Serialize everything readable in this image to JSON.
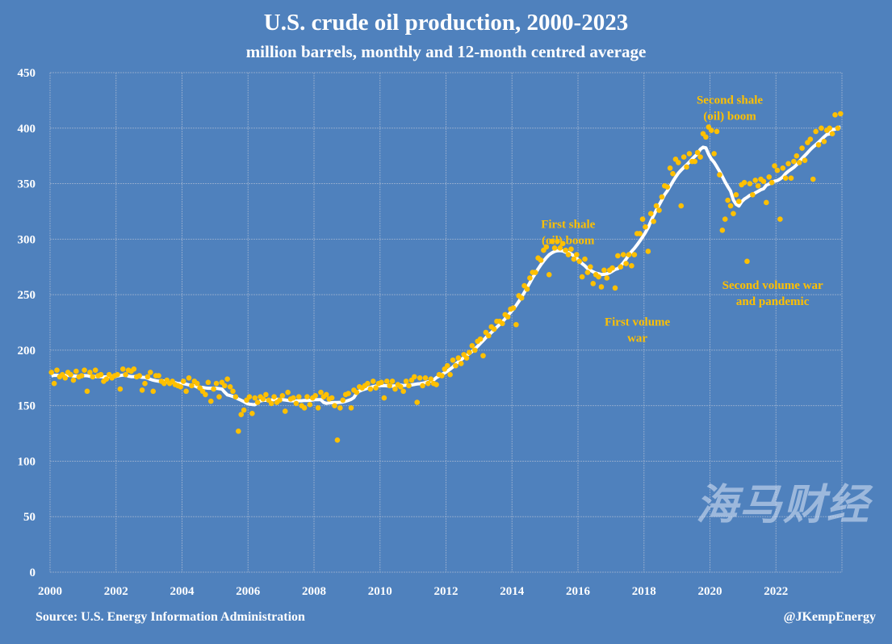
{
  "chart_data": {
    "type": "scatter+line",
    "title": "U.S. crude oil production, 2000-2023",
    "subtitle": "million barrels, monthly and 12-month centred average",
    "xlabel": "",
    "ylabel": "",
    "xlim": [
      2000,
      2024
    ],
    "ylim": [
      0,
      450
    ],
    "x_ticks": [
      "2000",
      "2002",
      "2004",
      "2006",
      "2008",
      "2010",
      "2012",
      "2014",
      "2016",
      "2018",
      "2020",
      "2022"
    ],
    "y_ticks": [
      "0",
      "50",
      "100",
      "150",
      "200",
      "250",
      "300",
      "350",
      "400",
      "450"
    ],
    "grid": true,
    "colors": {
      "background": "#4f81bd",
      "monthly": "#ffc000",
      "average": "#ffffff",
      "annotation": "#ffc000",
      "grid": "#a9b9d3"
    },
    "monthly_start_year": 2000,
    "series": [
      {
        "kind": "monthly points",
        "values_by_year": {
          "2000": [
            180,
            170,
            182,
            176,
            178,
            175,
            180,
            178,
            173,
            181,
            176,
            177
          ],
          "2001": [
            182,
            163,
            180,
            176,
            182,
            177,
            178,
            172,
            174,
            178,
            175,
            177
          ],
          "2002": [
            178,
            165,
            183,
            178,
            182,
            181,
            183,
            176,
            177,
            164,
            170,
            176
          ],
          "2003": [
            180,
            163,
            177,
            177,
            172,
            170,
            173,
            170,
            172,
            169,
            168,
            167
          ],
          "2004": [
            172,
            163,
            175,
            168,
            172,
            170,
            166,
            163,
            160,
            171,
            154,
            165
          ],
          "2005": [
            170,
            158,
            171,
            168,
            174,
            167,
            163,
            158,
            127,
            142,
            146,
            155
          ],
          "2006": [
            158,
            143,
            157,
            153,
            158,
            156,
            160,
            155,
            152,
            158,
            153,
            155
          ],
          "2007": [
            159,
            145,
            162,
            156,
            157,
            152,
            158,
            150,
            148,
            158,
            151,
            157
          ],
          "2008": [
            159,
            148,
            162,
            158,
            160,
            156,
            157,
            150,
            119,
            148,
            155,
            160
          ],
          "2009": [
            161,
            148,
            164,
            162,
            167,
            166,
            168,
            170,
            165,
            172,
            166,
            170
          ],
          "2010": [
            171,
            157,
            172,
            168,
            172,
            165,
            169,
            167,
            163,
            172,
            168,
            173
          ],
          "2011": [
            176,
            153,
            175,
            168,
            175,
            170,
            174,
            170,
            169,
            178,
            177,
            183
          ],
          "2012": [
            186,
            178,
            191,
            186,
            193,
            188,
            196,
            193,
            198,
            204,
            200,
            208
          ],
          "2013": [
            210,
            195,
            216,
            213,
            221,
            219,
            226,
            226,
            224,
            232,
            230,
            237
          ],
          "2014": [
            238,
            223,
            249,
            247,
            258,
            255,
            265,
            270,
            270,
            283,
            281,
            290
          ],
          "2015": [
            293,
            268,
            298,
            292,
            298,
            292,
            296,
            290,
            286,
            291,
            282,
            286
          ],
          "2016": [
            280,
            266,
            282,
            270,
            275,
            260,
            268,
            266,
            257,
            272,
            265,
            272
          ],
          "2017": [
            274,
            256,
            285,
            275,
            286,
            278,
            286,
            276,
            286,
            305,
            305,
            318
          ],
          "2018": [
            311,
            289,
            323,
            316,
            330,
            326,
            338,
            348,
            347,
            364,
            359,
            372
          ],
          "2019": [
            369,
            330,
            374,
            365,
            377,
            370,
            370,
            378,
            374,
            395,
            392,
            401
          ],
          "2020": [
            398,
            377,
            397,
            358,
            308,
            318,
            335,
            330,
            323,
            340,
            334,
            349
          ],
          "2021": [
            351,
            280,
            350,
            340,
            353,
            348,
            354,
            352,
            333,
            356,
            351,
            366
          ],
          "2022": [
            362,
            318,
            364,
            355,
            368,
            355,
            370,
            375,
            369,
            382,
            371,
            387
          ],
          "2023": [
            390,
            354,
            397,
            385,
            400,
            388,
            398,
            400,
            395,
            412,
            400,
            413
          ]
        }
      },
      {
        "kind": "12-month centred average line"
      }
    ],
    "annotations": [
      {
        "lines": [
          "First shale",
          "(oil) boom"
        ],
        "x": 2015.7,
        "y": 310
      },
      {
        "lines": [
          "First volume",
          "war"
        ],
        "x": 2017.8,
        "y": 222
      },
      {
        "lines": [
          "Second shale",
          "(oil) boom"
        ],
        "x": 2020.6,
        "y": 422
      },
      {
        "lines": [
          "Second volume war",
          "and pandemic"
        ],
        "x": 2021.9,
        "y": 255
      }
    ]
  },
  "footer": {
    "source": "Source: U.S. Energy Information Administration",
    "handle": "@JKempEnergy"
  },
  "watermark": "海马财经"
}
